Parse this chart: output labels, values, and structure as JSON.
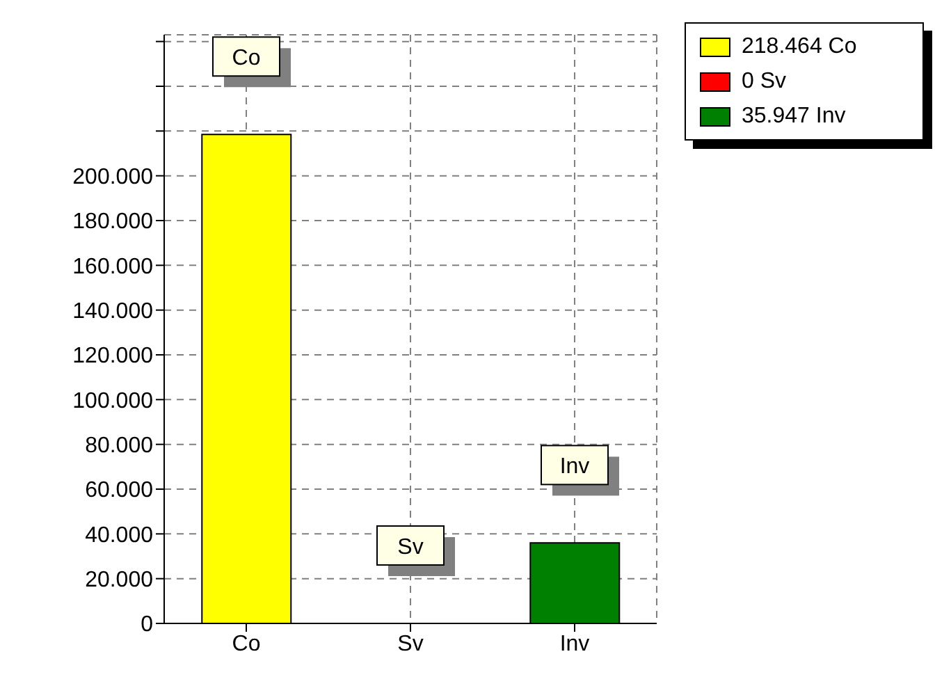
{
  "chart_data": {
    "type": "bar",
    "categories": [
      "Co",
      "Sv",
      "Inv"
    ],
    "series": [
      {
        "name": "218.464 Co",
        "color": "#ffff00",
        "values": [
          218464,
          null,
          null
        ]
      },
      {
        "name": "0 Sv",
        "color": "#ff0000",
        "values": [
          null,
          0,
          null
        ]
      },
      {
        "name": "35.947 Inv",
        "color": "#008000",
        "values": [
          null,
          null,
          35947
        ]
      }
    ],
    "stacked": true,
    "ylim": [
      0,
      263000
    ],
    "yticks": [
      0,
      {
        "value": 20000,
        "label": "20.000"
      },
      {
        "value": 40000,
        "label": "40.000"
      },
      {
        "value": 60000,
        "label": "60.000"
      },
      {
        "value": 80000,
        "label": "80.000"
      },
      {
        "value": 100000,
        "label": "100.000"
      },
      {
        "value": 120000,
        "label": "120.000"
      },
      {
        "value": 140000,
        "label": "140.000"
      },
      {
        "value": 160000,
        "label": "160.000"
      },
      {
        "value": 180000,
        "label": "180.000"
      },
      {
        "value": 200000,
        "label": "200.000"
      },
      {
        "value": 220000,
        "label": null
      },
      {
        "value": 240000,
        "label": null
      },
      {
        "value": 260000,
        "label": null
      }
    ],
    "annotations": [
      "Co",
      "Sv",
      "Inv"
    ],
    "grid": true,
    "legend": "top right"
  }
}
